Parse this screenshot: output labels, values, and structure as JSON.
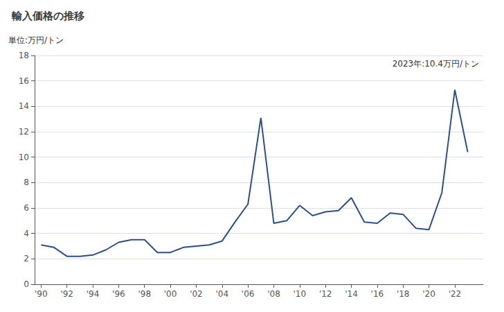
{
  "chart_data": {
    "type": "line",
    "title": "輸入価格の推移",
    "ylabel": "単位:万円/トン",
    "annotation": "2023年:10.4万円/トン",
    "x": [
      1990,
      1991,
      1992,
      1993,
      1994,
      1995,
      1996,
      1997,
      1998,
      1999,
      2000,
      2001,
      2002,
      2003,
      2004,
      2005,
      2006,
      2007,
      2008,
      2009,
      2010,
      2011,
      2012,
      2013,
      2014,
      2015,
      2016,
      2017,
      2018,
      2019,
      2020,
      2021,
      2022,
      2023
    ],
    "values": [
      3.1,
      2.9,
      2.2,
      2.2,
      2.3,
      2.7,
      3.3,
      3.5,
      3.5,
      2.5,
      2.5,
      2.9,
      3.0,
      3.1,
      3.4,
      4.9,
      6.3,
      13.1,
      4.8,
      5.0,
      6.2,
      5.4,
      5.7,
      5.8,
      6.8,
      4.9,
      4.8,
      5.6,
      5.5,
      4.4,
      4.3,
      7.2,
      15.3,
      10.4
    ],
    "color": "#2d4d8a",
    "xlim": [
      1989.5,
      2024.2
    ],
    "xticks": [
      {
        "value": 1990,
        "label": "'90"
      },
      {
        "value": 1992,
        "label": "'92"
      },
      {
        "value": 1994,
        "label": "'94"
      },
      {
        "value": 1996,
        "label": "'96"
      },
      {
        "value": 1998,
        "label": "'98"
      },
      {
        "value": 2000,
        "label": "'00"
      },
      {
        "value": 2002,
        "label": "'02"
      },
      {
        "value": 2004,
        "label": "'04"
      },
      {
        "value": 2006,
        "label": "'06"
      },
      {
        "value": 2008,
        "label": "'08"
      },
      {
        "value": 2010,
        "label": "'10"
      },
      {
        "value": 2012,
        "label": "'12"
      },
      {
        "value": 2014,
        "label": "'14"
      },
      {
        "value": 2016,
        "label": "'16"
      },
      {
        "value": 2018,
        "label": "'18"
      },
      {
        "value": 2020,
        "label": "'20"
      },
      {
        "value": 2022,
        "label": "'22"
      }
    ],
    "ylim": [
      0,
      18
    ],
    "yticks": [
      0,
      2,
      4,
      6,
      8,
      10,
      12,
      14,
      16,
      18
    ],
    "grid": true
  }
}
